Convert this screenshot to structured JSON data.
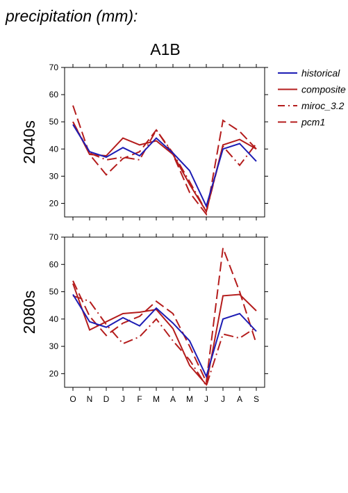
{
  "page_title": "precipitation (mm):",
  "scenario_title": "A1B",
  "colors": {
    "historical": "#1c1cb4",
    "model": "#b41c1c"
  },
  "legend": [
    {
      "label": "historical",
      "style": "solid",
      "color": "#1c1cb4"
    },
    {
      "label": "composite",
      "style": "solid",
      "color": "#b41c1c"
    },
    {
      "label": "miroc_3.2",
      "style": "dashdot",
      "color": "#b41c1c"
    },
    {
      "label": "pcm1",
      "style": "dashed",
      "color": "#b41c1c"
    }
  ],
  "chart_data": [
    {
      "type": "line",
      "ylabel": "2040s",
      "categories": [
        "O",
        "N",
        "D",
        "J",
        "F",
        "M",
        "A",
        "M",
        "J",
        "J",
        "A",
        "S"
      ],
      "ylim": [
        15,
        70
      ],
      "yticks": [
        20,
        30,
        40,
        50,
        60,
        70
      ],
      "series": [
        {
          "name": "historical",
          "style": "solid",
          "values": [
            49,
            39,
            37,
            40.5,
            37.5,
            44,
            38.5,
            32,
            19,
            40,
            42,
            35.5
          ]
        },
        {
          "name": "composite",
          "style": "solid",
          "values": [
            50,
            38,
            37.5,
            44,
            41.5,
            43,
            38,
            27,
            17,
            41.5,
            43.5,
            40
          ]
        },
        {
          "name": "miroc_3.2",
          "style": "dashdot",
          "values": [
            50,
            38.5,
            36,
            37,
            36,
            47,
            38.5,
            28,
            17,
            41,
            34,
            42
          ]
        },
        {
          "name": "pcm1",
          "style": "dashed",
          "values": [
            56,
            38,
            30.5,
            36.5,
            39,
            47,
            38,
            24,
            16,
            50.5,
            46.5,
            40
          ]
        }
      ]
    },
    {
      "type": "line",
      "ylabel": "2080s",
      "categories": [
        "O",
        "N",
        "D",
        "J",
        "F",
        "M",
        "A",
        "M",
        "J",
        "J",
        "A",
        "S"
      ],
      "ylim": [
        15,
        70
      ],
      "yticks": [
        20,
        30,
        40,
        50,
        60,
        70
      ],
      "series": [
        {
          "name": "historical",
          "style": "solid",
          "values": [
            49,
            39,
            37,
            40.5,
            37.5,
            44,
            38.5,
            32,
            19,
            40,
            42,
            35.5
          ]
        },
        {
          "name": "composite",
          "style": "solid",
          "values": [
            53,
            36,
            39,
            42,
            42.5,
            43.5,
            36.5,
            23,
            16,
            48.5,
            49,
            43
          ]
        },
        {
          "name": "miroc_3.2",
          "style": "dashdot",
          "values": [
            48.5,
            46.5,
            38,
            31,
            33.5,
            40,
            32,
            25,
            15.5,
            34.5,
            33,
            37
          ]
        },
        {
          "name": "pcm1",
          "style": "dashed",
          "values": [
            54,
            41,
            34,
            38.5,
            41,
            46.5,
            42,
            30,
            17,
            66,
            50,
            31
          ]
        }
      ]
    }
  ]
}
